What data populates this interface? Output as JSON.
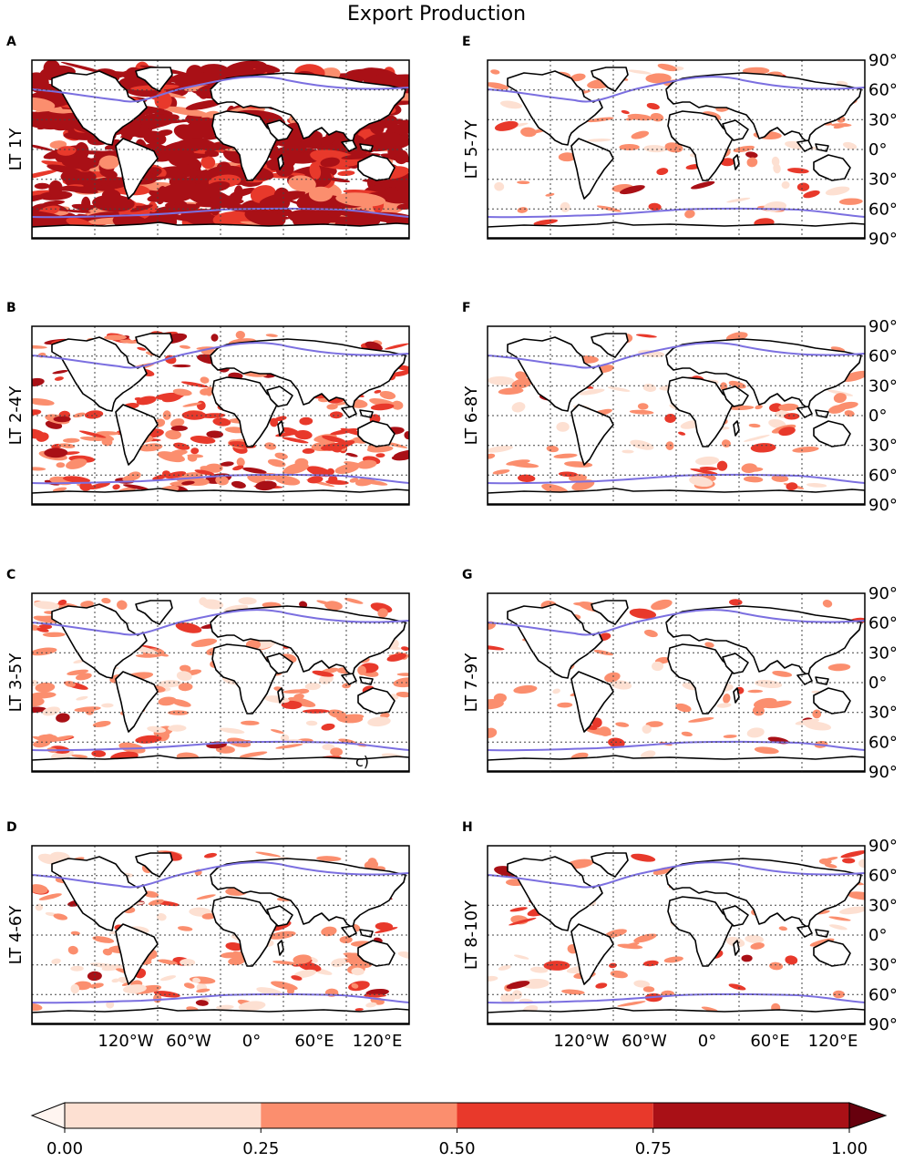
{
  "figure": {
    "title": "Export Production",
    "panels": [
      {
        "letter": "A",
        "label": "LT 1Y",
        "coverage": 0.85,
        "note": ""
      },
      {
        "letter": "B",
        "label": "LT 2-4Y",
        "coverage": 0.45,
        "note": ""
      },
      {
        "letter": "C",
        "label": "LT 3-5Y",
        "coverage": 0.3,
        "note": "c)"
      },
      {
        "letter": "D",
        "label": "LT 4-6Y",
        "coverage": 0.22,
        "note": ""
      },
      {
        "letter": "E",
        "label": "LT 5-7Y",
        "coverage": 0.12,
        "note": ""
      },
      {
        "letter": "F",
        "label": "LT 6-8Y",
        "coverage": 0.1,
        "note": ""
      },
      {
        "letter": "G",
        "label": "LT 7-9Y",
        "coverage": 0.08,
        "note": ""
      },
      {
        "letter": "H",
        "label": "LT 8-10Y",
        "coverage": 0.09,
        "note": ""
      }
    ],
    "lon_ticks": [
      "120°W",
      "60°W",
      "0°",
      "60°E",
      "120°E"
    ],
    "lat_ticks": [
      "90°",
      "60°",
      "30°",
      "0°",
      "30°",
      "60°",
      "90°"
    ],
    "colorbar": {
      "ticks": [
        "0.00",
        "0.25",
        "0.50",
        "0.75",
        "1.00"
      ],
      "levels": [
        {
          "from": 0.0,
          "to": 0.25,
          "color": "#fde0d2"
        },
        {
          "from": 0.25,
          "to": 0.5,
          "color": "#fb8e6e"
        },
        {
          "from": 0.5,
          "to": 0.75,
          "color": "#e8392b"
        },
        {
          "from": 0.75,
          "to": 1.0,
          "color": "#a91016"
        }
      ],
      "under_color": "#fff5f0",
      "over_color": "#67000d"
    },
    "colors": {
      "coast": "#000000",
      "contour": "#7b6fe0",
      "grid": "#444444"
    }
  }
}
